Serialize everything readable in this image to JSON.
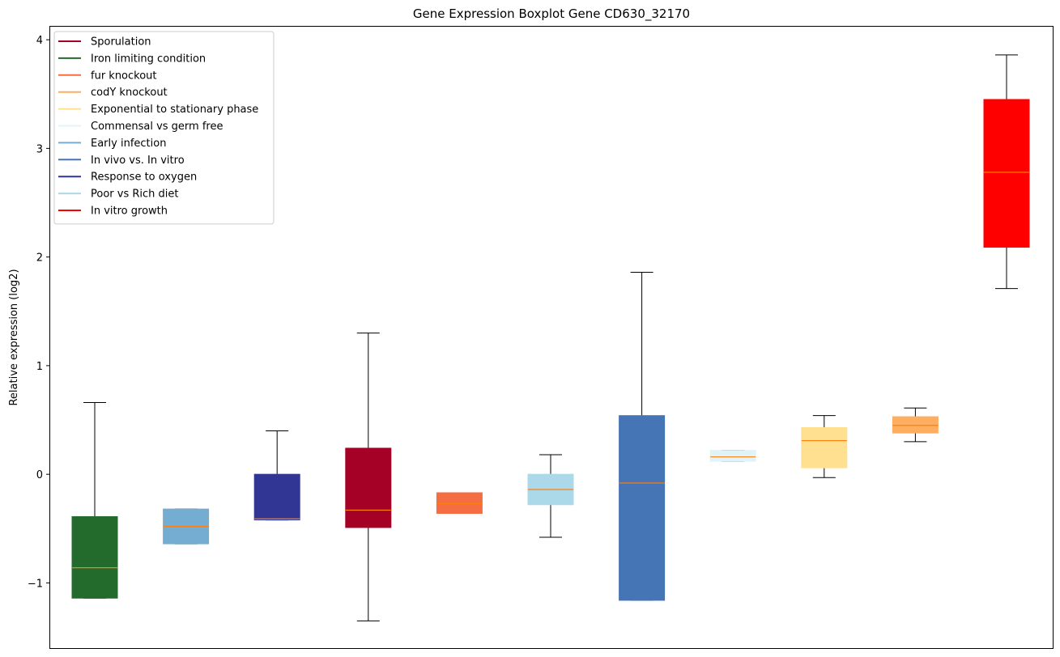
{
  "chart_data": {
    "type": "boxplot",
    "title": "Gene Expression Boxplot Gene CD630_32170",
    "xlabel": "",
    "ylabel": "Relative expression (log2)",
    "ylim": [
      -1.6,
      4.12
    ],
    "yticks": [
      -1,
      0,
      1,
      2,
      3,
      4
    ],
    "ytick_labels": [
      "−1",
      "0",
      "1",
      "2",
      "3",
      "4"
    ],
    "median_color": "#ff7f0e",
    "whisker_color": "#000000",
    "legend": [
      {
        "label": "Sporulation",
        "color": "#a50026"
      },
      {
        "label": "Iron limiting condition",
        "color": "#226b2d"
      },
      {
        "label": "fur knockout",
        "color": "#f46d43"
      },
      {
        "label": "codY knockout",
        "color": "#fdae61"
      },
      {
        "label": "Exponential to stationary phase",
        "color": "#fee090"
      },
      {
        "label": "Commensal vs germ free",
        "color": "#e0f3f8"
      },
      {
        "label": "Early infection",
        "color": "#74add1"
      },
      {
        "label": "In vivo vs. In vitro",
        "color": "#4575b4"
      },
      {
        "label": "Response to oxygen",
        "color": "#313695"
      },
      {
        "label": "Poor vs Rich diet",
        "color": "#abd9e9"
      },
      {
        "label": "In vitro growth",
        "color": "#ff0000"
      }
    ],
    "boxes": [
      {
        "name": "Iron limiting condition",
        "color": "#226b2d",
        "whisker_low": -1.14,
        "q1": -1.14,
        "median": -0.86,
        "q3": -0.39,
        "whisker_high": 0.66
      },
      {
        "name": "Early infection",
        "color": "#74add1",
        "whisker_low": -0.64,
        "q1": -0.64,
        "median": -0.48,
        "q3": -0.32,
        "whisker_high": -0.32
      },
      {
        "name": "Response to oxygen",
        "color": "#313695",
        "whisker_low": -0.42,
        "q1": -0.42,
        "median": -0.41,
        "q3": 0.0,
        "whisker_high": 0.4
      },
      {
        "name": "Sporulation",
        "color": "#a50026",
        "whisker_low": -1.35,
        "q1": -0.49,
        "median": -0.33,
        "q3": 0.24,
        "whisker_high": 1.3
      },
      {
        "name": "fur knockout",
        "color": "#f46d43",
        "whisker_low": -0.36,
        "q1": -0.36,
        "median": -0.27,
        "q3": -0.17,
        "whisker_high": -0.17
      },
      {
        "name": "Poor vs Rich diet",
        "color": "#abd9e9",
        "whisker_low": -0.58,
        "q1": -0.28,
        "median": -0.14,
        "q3": 0.0,
        "whisker_high": 0.18
      },
      {
        "name": "In vivo vs. In vitro",
        "color": "#4575b4",
        "whisker_low": -1.16,
        "q1": -1.16,
        "median": -0.08,
        "q3": 0.54,
        "whisker_high": 1.86
      },
      {
        "name": "Commensal vs germ free",
        "color": "#e0f3f8",
        "whisker_low": 0.12,
        "q1": 0.12,
        "median": 0.16,
        "q3": 0.22,
        "whisker_high": 0.22
      },
      {
        "name": "Exponential to stationary phase",
        "color": "#fee090",
        "whisker_low": -0.03,
        "q1": 0.06,
        "median": 0.31,
        "q3": 0.43,
        "whisker_high": 0.54
      },
      {
        "name": "codY knockout",
        "color": "#fdae61",
        "whisker_low": 0.3,
        "q1": 0.38,
        "median": 0.45,
        "q3": 0.53,
        "whisker_high": 0.61
      },
      {
        "name": "In vitro growth",
        "color": "#ff0000",
        "whisker_low": 1.71,
        "q1": 2.09,
        "median": 2.78,
        "q3": 3.45,
        "whisker_high": 3.86
      }
    ]
  }
}
